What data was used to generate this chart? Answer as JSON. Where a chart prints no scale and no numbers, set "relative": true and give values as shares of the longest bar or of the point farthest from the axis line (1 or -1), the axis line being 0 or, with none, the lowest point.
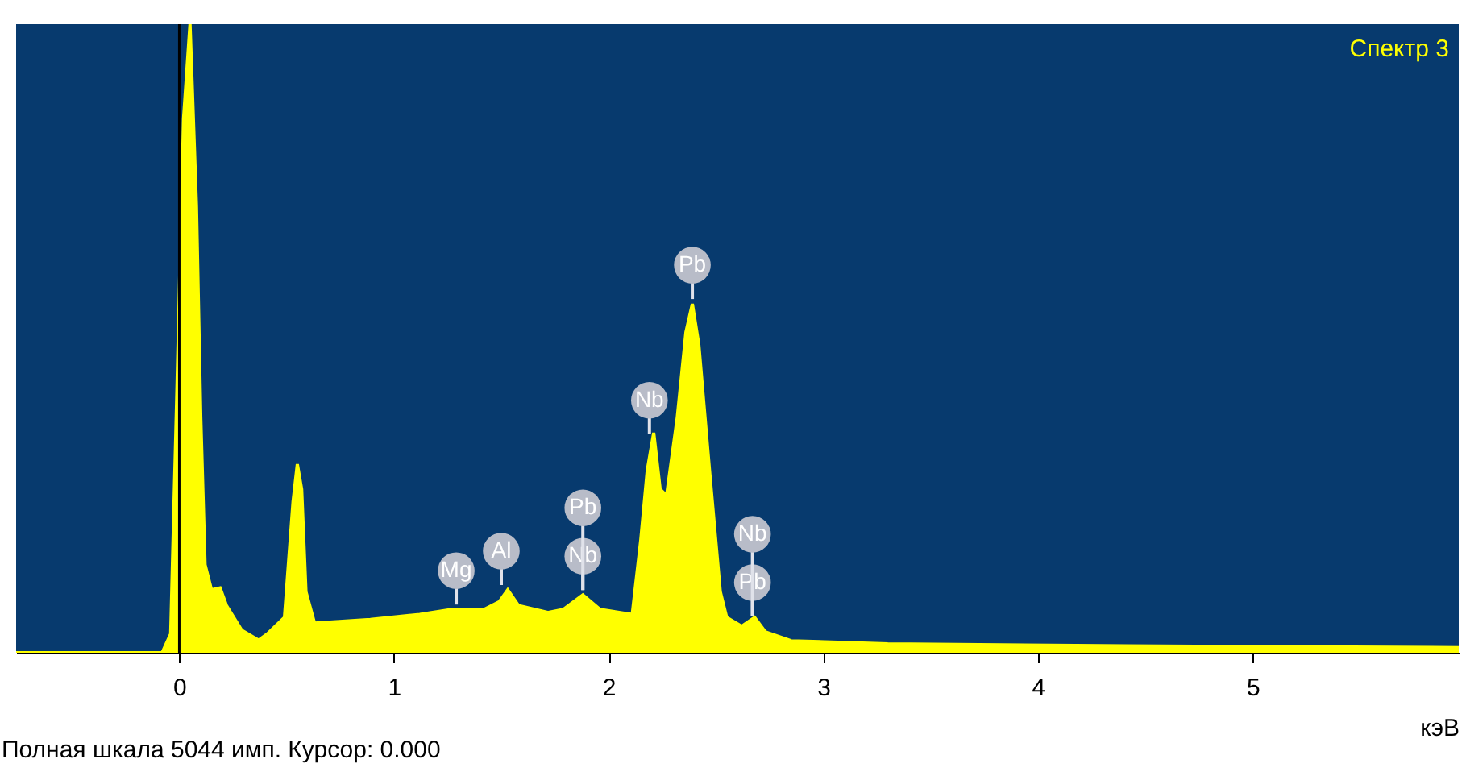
{
  "chart_data": {
    "type": "area",
    "relative": true,
    "xlabel": "кэВ",
    "x": [
      -0.76,
      -0.08,
      -0.04,
      -0.01,
      0.02,
      0.05,
      0.08,
      0.1,
      0.12,
      0.15,
      0.19,
      0.22,
      0.29,
      0.37,
      0.41,
      0.49,
      0.53,
      0.55,
      0.57,
      0.59,
      0.63,
      0.89,
      1.12,
      1.27,
      1.42,
      1.49,
      1.53,
      1.58,
      1.72,
      1.79,
      1.88,
      1.96,
      2.11,
      2.15,
      2.18,
      2.21,
      2.24,
      2.27,
      2.32,
      2.36,
      2.39,
      2.42,
      2.47,
      2.52,
      2.55,
      2.62,
      2.68,
      2.73,
      2.85,
      3.3,
      4.42,
      5.96
    ],
    "series": [
      {
        "name": "Спектр 3",
        "color": "#ffff00",
        "values": [
          0,
          0,
          0.03,
          0.43,
          0.85,
          1.0,
          0.71,
          0.375,
          0.14,
          0.1,
          0.103,
          0.075,
          0.036,
          0.02,
          0.03,
          0.056,
          0.24,
          0.3,
          0.26,
          0.097,
          0.047,
          0.053,
          0.061,
          0.069,
          0.069,
          0.081,
          0.1,
          0.075,
          0.064,
          0.069,
          0.092,
          0.069,
          0.061,
          0.18,
          0.29,
          0.35,
          0.26,
          0.25,
          0.375,
          0.51,
          0.555,
          0.49,
          0.29,
          0.097,
          0.056,
          0.042,
          0.056,
          0.033,
          0.019,
          0.014,
          0.011,
          0.008
        ]
      }
    ],
    "xlim": [
      -0.76,
      5.96
    ],
    "xticks": [
      0,
      1,
      2,
      3,
      4,
      5
    ],
    "ref_lines": [
      {
        "axis": "x",
        "value": 0,
        "color": "#000000"
      }
    ],
    "annotations": [
      {
        "text": "Mg",
        "x": 1.29,
        "y": 0.069
      },
      {
        "text": "Al",
        "x": 1.5,
        "y": 0.1
      },
      {
        "text": "Nb",
        "x": 1.88,
        "y": 0.092
      },
      {
        "text": "Pb",
        "x": 1.88,
        "y": 0.092
      },
      {
        "text": "Nb",
        "x": 2.19,
        "y": 0.34
      },
      {
        "text": "Pb",
        "x": 2.39,
        "y": 0.555
      },
      {
        "text": "Pb",
        "x": 2.67,
        "y": 0.05
      },
      {
        "text": "Nb",
        "x": 2.67,
        "y": 0.05
      },
      "Полная шкала 5044 имп. Курсор: 0.000"
    ],
    "grid": false
  }
}
